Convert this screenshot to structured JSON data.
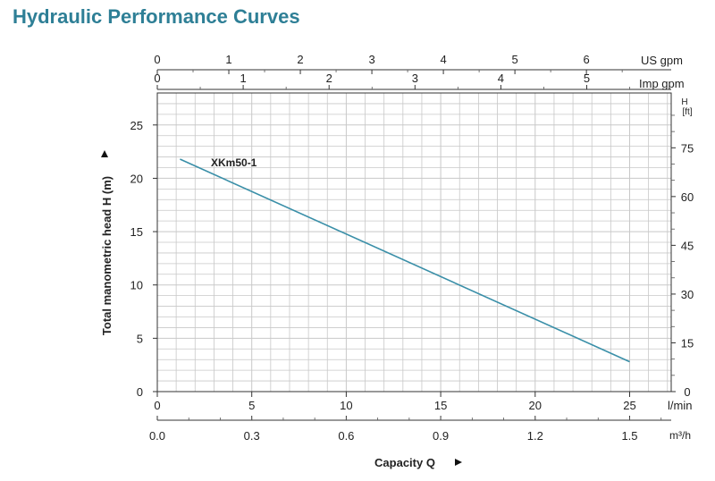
{
  "title": "Hydraulic Performance Curves",
  "colors": {
    "title": "#2e7f96",
    "curve": "#3a8fa8",
    "grid": "#c8c8c8",
    "axis": "#333333"
  },
  "chart_data": {
    "type": "line",
    "series": [
      {
        "name": "XKm50-1",
        "x": [
          1.2,
          25
        ],
        "y": [
          21.8,
          2.8
        ]
      }
    ],
    "x_axes": {
      "l_min": {
        "label": "l/min",
        "ticks": [
          0,
          5,
          10,
          15,
          20,
          25
        ],
        "range": [
          0,
          27.2
        ]
      },
      "m3_h": {
        "label": "m³/h",
        "ticks": [
          "0.0",
          "0.3",
          "0.6",
          "0.9",
          "1.2",
          "1.5"
        ]
      },
      "us_gpm": {
        "label": "US gpm",
        "ticks": [
          0,
          1,
          2,
          3,
          4,
          5,
          6
        ]
      },
      "imp_gpm": {
        "label": "Imp gpm",
        "ticks": [
          0,
          1,
          2,
          3,
          4,
          5
        ]
      }
    },
    "y_axes": {
      "m": {
        "label": "Total manometric head H (m)",
        "ticks": [
          0,
          5,
          10,
          15,
          20,
          25
        ],
        "range": [
          0,
          28
        ]
      },
      "ft": {
        "label_top": "H",
        "label_unit": "[ft]",
        "ticks": [
          0,
          15,
          30,
          45,
          60,
          75
        ]
      }
    },
    "xlabel": "Capacity Q",
    "grid": true
  }
}
